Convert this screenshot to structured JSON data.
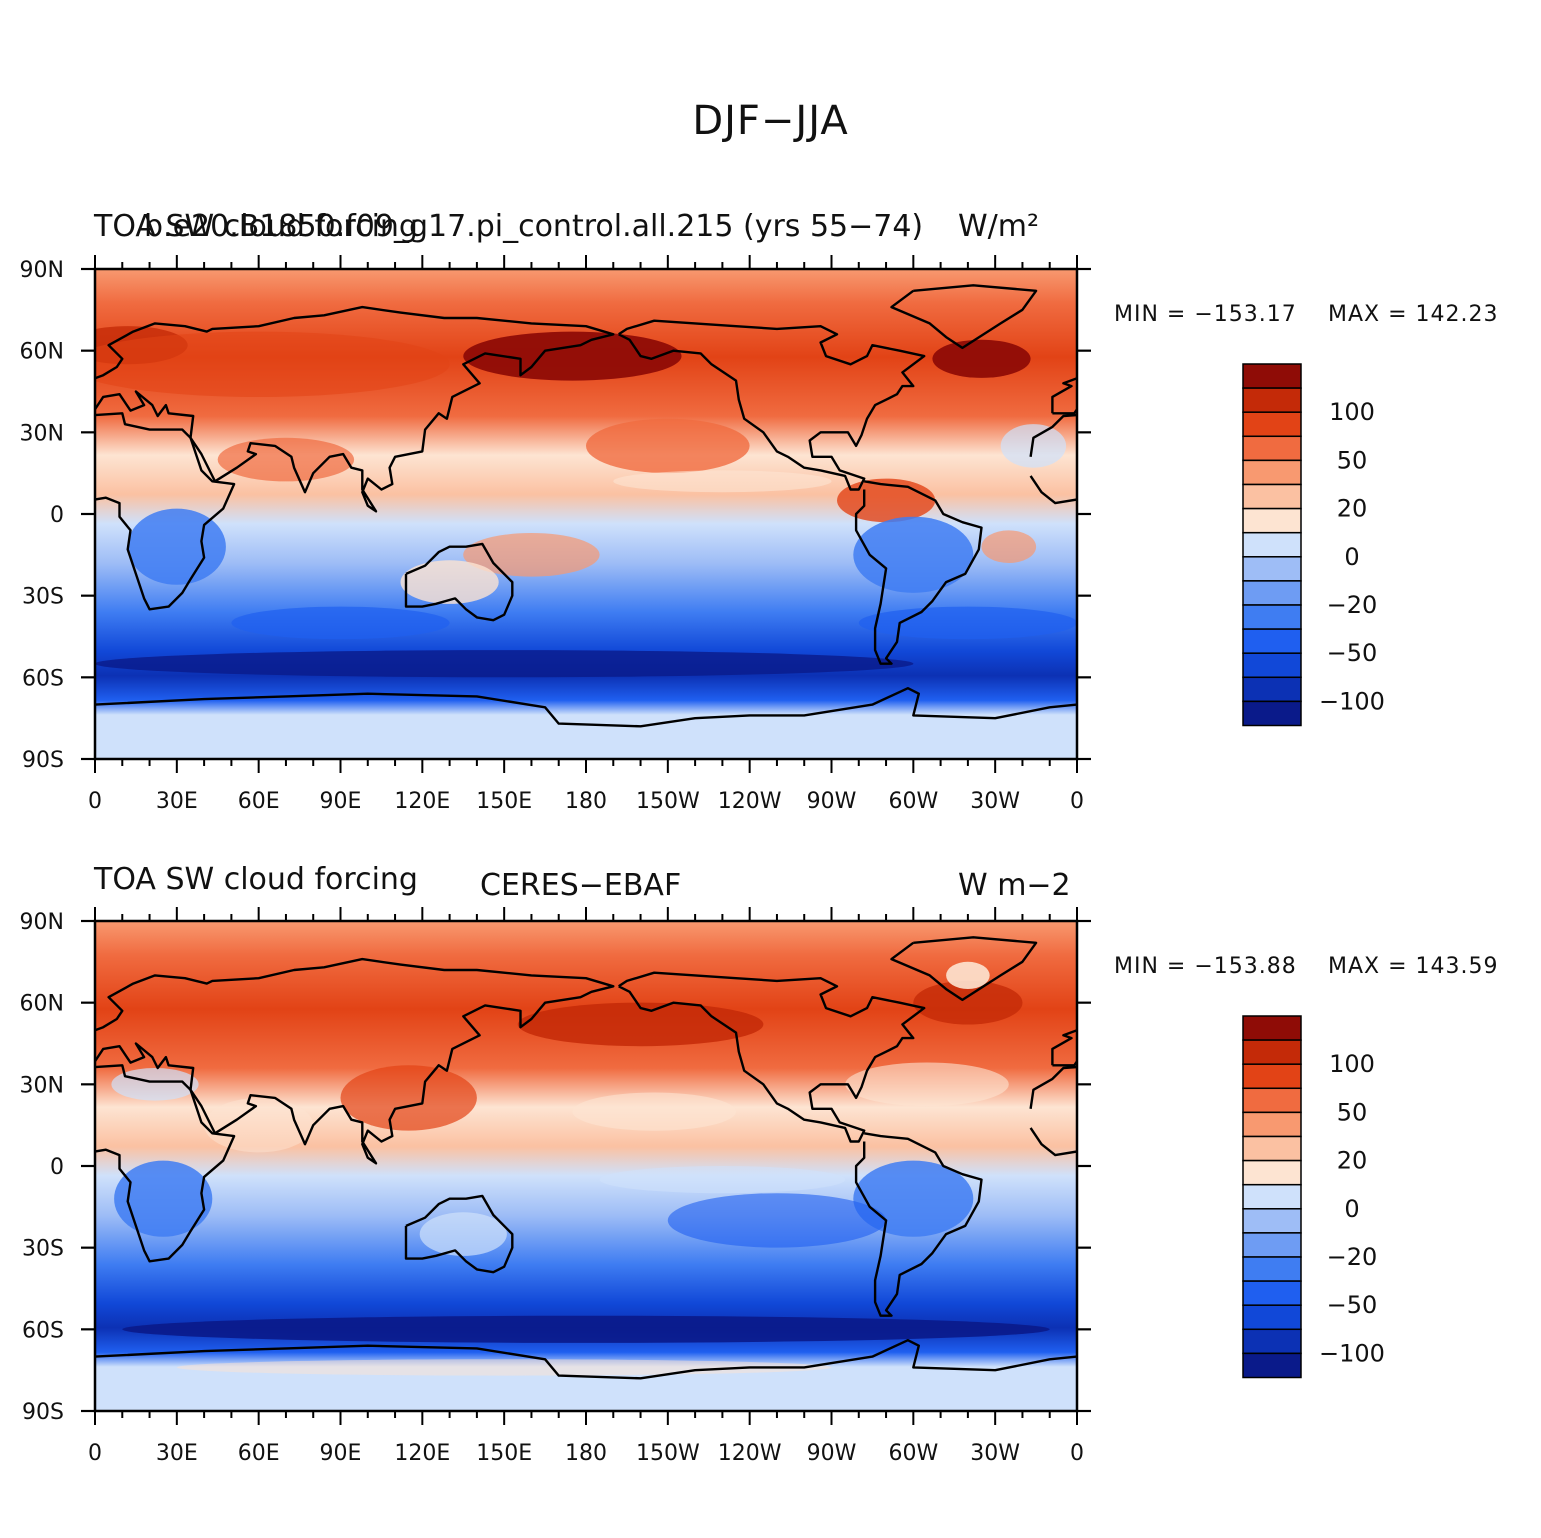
{
  "title": "DJF−JJA",
  "colors": {
    "frame": "#000000",
    "coast": "#000000",
    "levels": [
      "#0a1a8a",
      "#0c31b4",
      "#1148d8",
      "#1f5ff0",
      "#3f7df2",
      "#6e9cf3",
      "#9ebdf6",
      "#cfe1fb",
      "#fde4d2",
      "#fbc1a2",
      "#f89970",
      "#f06b40",
      "#e24316",
      "#c42a08",
      "#8f0c06"
    ]
  },
  "legend_labels": [
    "100",
    "50",
    "20",
    "0",
    "−20",
    "−50",
    "−100"
  ],
  "lat_ticks": [
    "90N",
    "60N",
    "30N",
    "0",
    "30S",
    "60S",
    "90S"
  ],
  "lon_ticks": [
    "0",
    "30E",
    "60E",
    "90E",
    "120E",
    "150E",
    "180",
    "150W",
    "120W",
    "90W",
    "60W",
    "30W",
    "0"
  ],
  "panels": [
    {
      "left": "TOA SW cloud forcing",
      "center": "b.e20.B1850.f09_g17.pi_control.all.215 (yrs 55−74)",
      "right": "W/m²",
      "min_label": "MIN = −153.17",
      "max_label": "MAX = 142.23"
    },
    {
      "left": "TOA SW cloud forcing",
      "center": "CERES−EBAF",
      "right": "W m−2",
      "min_label": "MIN = −153.88",
      "max_label": "MAX = 143.59"
    }
  ]
}
